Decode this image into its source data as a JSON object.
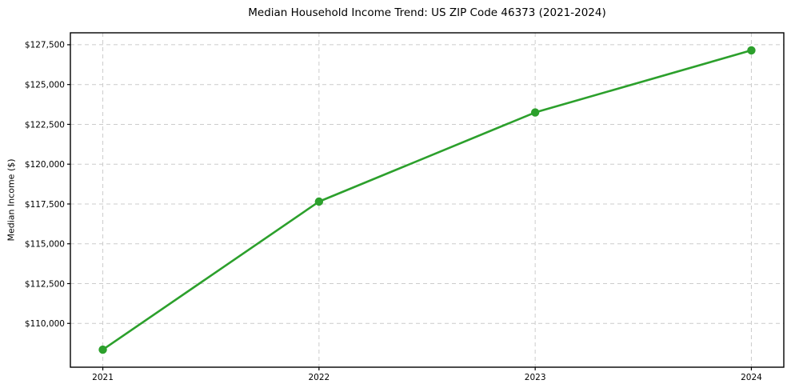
{
  "figure": {
    "background": "#ffffff"
  },
  "chart_data": {
    "type": "line",
    "title": "Median Household Income Trend: US ZIP Code 46373 (2021-2024)",
    "xlabel": "",
    "ylabel": "Median Income ($)",
    "x": [
      2021,
      2022,
      2023,
      2024
    ],
    "x_tick_labels": [
      "2021",
      "2022",
      "2023",
      "2024"
    ],
    "series": [
      {
        "name": "Median Household Income",
        "values": [
          108350,
          117650,
          123250,
          127150
        ],
        "color": "#2ca02c",
        "marker": "circle"
      }
    ],
    "y_ticks": [
      110000,
      112500,
      115000,
      117500,
      120000,
      122500,
      125000,
      127500
    ],
    "y_tick_labels": [
      "$110,000",
      "$112,500",
      "$115,000",
      "$117,500",
      "$120,000",
      "$122,500",
      "$125,000",
      "$127,500"
    ],
    "xlim": [
      2020.85,
      2024.15
    ],
    "ylim": [
      107250,
      128250
    ],
    "grid": true,
    "grid_style": "dashed",
    "legend_position": "none",
    "colors": {
      "line": "#2ca02c",
      "grid": "#cccccc",
      "spine": "#000000",
      "text": "#000000",
      "background": "#ffffff"
    }
  }
}
